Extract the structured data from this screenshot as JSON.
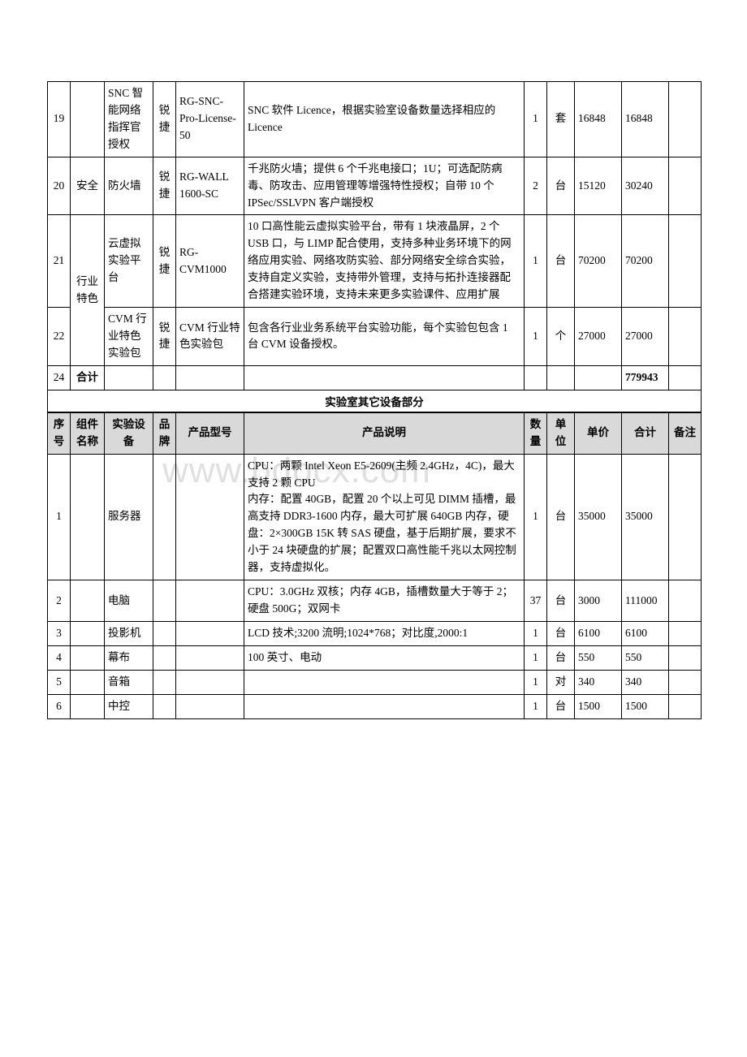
{
  "watermark": "www.bdocx.com",
  "table1": {
    "rows": [
      {
        "idx": "19",
        "comp": "",
        "equip": "SNC 智能网络指挥官授权",
        "brand": "锐捷",
        "model": "RG-SNC-Pro-License-50",
        "desc": "SNC 软件 Licence，根据实验室设备数量选择相应的 Licence",
        "qty": "1",
        "unit": "套",
        "price": "16848",
        "total": "16848",
        "note": ""
      },
      {
        "idx": "20",
        "comp": "安全",
        "equip": "防火墙",
        "brand": "锐捷",
        "model": "RG-WALL 1600-SC",
        "desc": "千兆防火墙；提供 6 个千兆电接口；1U；可选配防病毒、防攻击、应用管理等增强特性授权；自带 10 个 IPSec/SSLVPN 客户端授权",
        "qty": "2",
        "unit": "台",
        "price": "15120",
        "total": "30240",
        "note": ""
      },
      {
        "idx": "21",
        "comp": "行业特色",
        "comp_rowspan": 2,
        "equip": "云虚拟实验平台",
        "brand": "锐捷",
        "model": "RG-CVM1000",
        "desc": "10 口高性能云虚拟实验平台，带有 1 块液晶屏，2 个 USB 口，与 LIMP 配合使用，支持多种业务环境下的网络应用实验、网络攻防实验、部分网络安全综合实验，支持自定义实验，支持带外管理，支持与拓扑连接器配合搭建实验环境，支持未来更多实验课件、应用扩展",
        "qty": "1",
        "unit": "台",
        "price": "70200",
        "total": "70200",
        "note": ""
      },
      {
        "idx": "22",
        "comp_skip": true,
        "equip": "CVM 行业特色实验包",
        "brand": "锐捷",
        "model": "CVM 行业特色实验包",
        "desc": "包含各行业业务系统平台实验功能，每个实验包包含 1 台 CVM 设备授权。",
        "qty": "1",
        "unit": "个",
        "price": "27000",
        "total": "27000",
        "note": ""
      },
      {
        "idx": "24",
        "comp": "合计",
        "equip": "",
        "brand": "",
        "model": "",
        "desc": "",
        "qty": "",
        "unit": "",
        "price": "",
        "total": "779943",
        "note": "",
        "bold_comp": true,
        "bold_total": true
      }
    ]
  },
  "section2_title": "实验室其它设备部分",
  "table2": {
    "headers": [
      "序号",
      "组件名称",
      "实验设备",
      "品牌",
      "产品型号",
      "产品说明",
      "数量",
      "单位",
      "单价",
      "合计",
      "备注"
    ],
    "rows": [
      {
        "idx": "1",
        "comp": "",
        "equip": "服务器",
        "brand": "",
        "model": "",
        "desc": "CPU：两颗 Intel Xeon E5-2609(主频 2.4GHz，4C)，最大支持 2 颗 CPU\n内存：配置 40GB，配置 20 个以上可见 DIMM 插槽，最高支持 DDR3-1600 内存，最大可扩展 640GB 内存，硬盘：2×300GB 15K 转 SAS 硬盘，基于后期扩展，要求不小于 24 块硬盘的扩展；配置双口高性能千兆以太网控制器，支持虚拟化。",
        "qty": "1",
        "unit": "台",
        "price": "35000",
        "total": "35000",
        "note": ""
      },
      {
        "idx": "2",
        "comp": "",
        "equip": "电脑",
        "brand": "",
        "model": "",
        "desc": "CPU：3.0GHz 双核；内存 4GB，插槽数量大于等于 2；硬盘 500G；双网卡",
        "qty": "37",
        "unit": "台",
        "price": "3000",
        "total": "111000",
        "note": ""
      },
      {
        "idx": "3",
        "comp": "",
        "equip": "投影机",
        "brand": "",
        "model": "",
        "desc": "LCD 技术;3200 流明;1024*768；对比度,2000:1",
        "qty": "1",
        "unit": "台",
        "price": "6100",
        "total": "6100",
        "note": ""
      },
      {
        "idx": "4",
        "comp": "",
        "equip": "幕布",
        "brand": "",
        "model": "",
        "desc": "100 英寸、电动",
        "qty": "1",
        "unit": "台",
        "price": "550",
        "total": "550",
        "note": ""
      },
      {
        "idx": "5",
        "comp": "",
        "equip": "音箱",
        "brand": "",
        "model": "",
        "desc": "",
        "qty": "1",
        "unit": "对",
        "price": "340",
        "total": "340",
        "note": ""
      },
      {
        "idx": "6",
        "comp": "",
        "equip": "中控",
        "brand": "",
        "model": "",
        "desc": "",
        "qty": "1",
        "unit": "台",
        "price": "1500",
        "total": "1500",
        "note": ""
      }
    ]
  }
}
